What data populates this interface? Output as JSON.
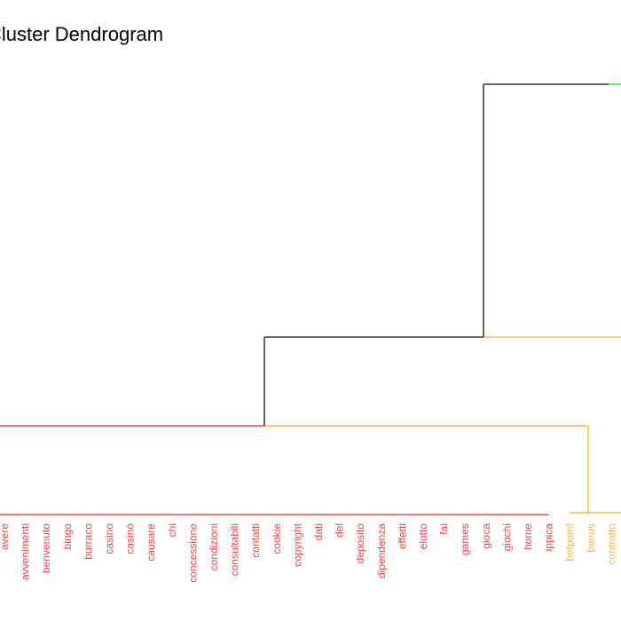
{
  "chart_data": {
    "type": "dendrogram",
    "title": "Cluster Dendrogram",
    "leaves": [
      {
        "label": "avere",
        "cluster": "red"
      },
      {
        "label": "avvenimenti",
        "cluster": "red"
      },
      {
        "label": "benvenuto",
        "cluster": "red"
      },
      {
        "label": "bingo",
        "cluster": "red"
      },
      {
        "label": "burraco",
        "cluster": "red"
      },
      {
        "label": "casino",
        "cluster": "red"
      },
      {
        "label": "casinò",
        "cluster": "red"
      },
      {
        "label": "causare",
        "cluster": "red"
      },
      {
        "label": "chi",
        "cluster": "red"
      },
      {
        "label": "concessione",
        "cluster": "red"
      },
      {
        "label": "condizioni",
        "cluster": "red"
      },
      {
        "label": "consultabili",
        "cluster": "red"
      },
      {
        "label": "contatti",
        "cluster": "red"
      },
      {
        "label": "cookie",
        "cluster": "red"
      },
      {
        "label": "copyright",
        "cluster": "red"
      },
      {
        "label": "dati",
        "cluster": "red"
      },
      {
        "label": "del",
        "cluster": "red"
      },
      {
        "label": "deposito",
        "cluster": "red"
      },
      {
        "label": "dipendenza",
        "cluster": "red"
      },
      {
        "label": "effetti",
        "cluster": "red"
      },
      {
        "label": "elotto",
        "cluster": "red"
      },
      {
        "label": "fai",
        "cluster": "red"
      },
      {
        "label": "games",
        "cluster": "red"
      },
      {
        "label": "gioca",
        "cluster": "red"
      },
      {
        "label": "giochi",
        "cluster": "red"
      },
      {
        "label": "home",
        "cluster": "red"
      },
      {
        "label": "ippica",
        "cluster": "red"
      },
      {
        "label": "betpoint",
        "cluster": "orange"
      },
      {
        "label": "bonus",
        "cluster": "orange"
      },
      {
        "label": "contratto",
        "cluster": "orange"
      }
    ],
    "merges": [
      {
        "name": "red-cluster",
        "height": 0.0,
        "color": "red"
      },
      {
        "name": "orange-cluster",
        "height": 0.02,
        "color": "orange"
      },
      {
        "name": "red-orange",
        "height": 1.0,
        "color": "orange"
      },
      {
        "name": "mid-node",
        "height": 2.0,
        "color": "gray"
      },
      {
        "name": "top-node",
        "height": 4.85,
        "color": "gray"
      }
    ],
    "colors": {
      "red": "#ff4444",
      "orange": "#ffb84d",
      "gray": "#333333",
      "green": "#44dd44"
    }
  }
}
